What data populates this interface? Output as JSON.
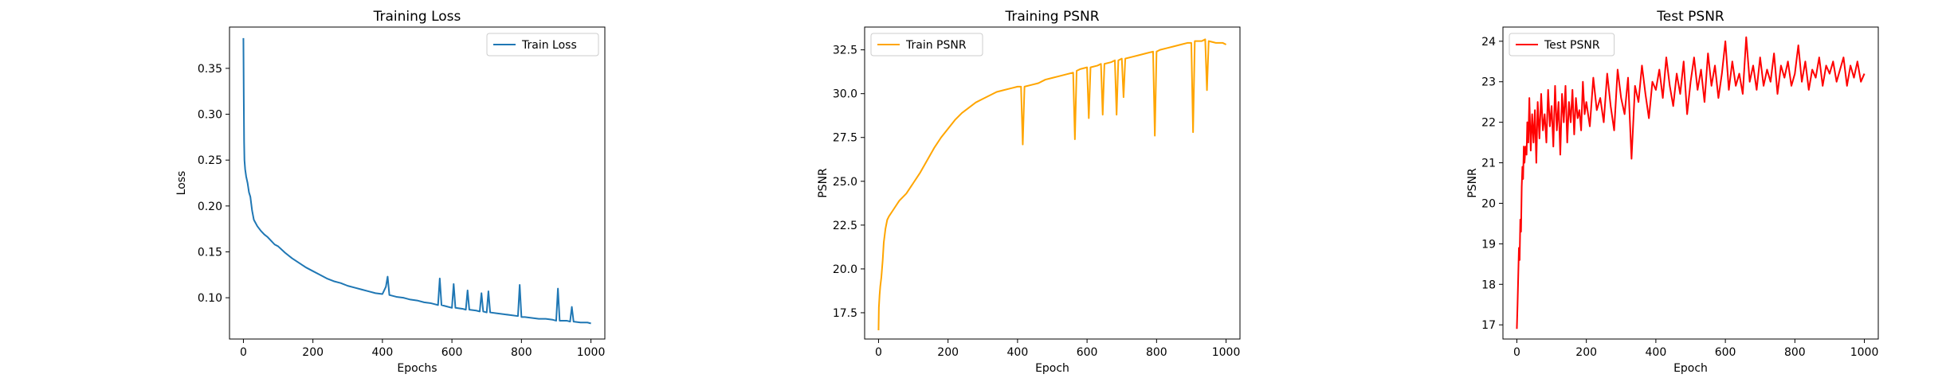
{
  "chart_data": [
    {
      "type": "line",
      "title": "Training Loss",
      "xlabel": "Epochs",
      "ylabel": "Loss",
      "xlim": [
        -40,
        1040
      ],
      "ylim": [
        0.055,
        0.395
      ],
      "xticks": [
        0,
        200,
        400,
        600,
        800,
        1000
      ],
      "xtick_labels": [
        "0",
        "200",
        "400",
        "600",
        "800",
        "1000"
      ],
      "yticks": [
        0.1,
        0.15,
        0.2,
        0.25,
        0.3,
        0.35
      ],
      "ytick_labels": [
        "0.10",
        "0.15",
        "0.20",
        "0.25",
        "0.30",
        "0.35"
      ],
      "grid": false,
      "legend_position": "top-right",
      "series": [
        {
          "name": "Train Loss",
          "color": "#1f77b4",
          "x": [
            0,
            1,
            2,
            3,
            5,
            8,
            12,
            16,
            20,
            25,
            30,
            40,
            50,
            60,
            70,
            80,
            90,
            100,
            120,
            140,
            160,
            180,
            200,
            220,
            240,
            260,
            280,
            300,
            320,
            340,
            360,
            380,
            400,
            410,
            415,
            420,
            440,
            460,
            480,
            500,
            520,
            540,
            560,
            565,
            570,
            580,
            600,
            605,
            610,
            630,
            640,
            645,
            650,
            670,
            680,
            685,
            690,
            700,
            705,
            710,
            730,
            750,
            770,
            790,
            795,
            800,
            810,
            830,
            850,
            870,
            890,
            900,
            905,
            910,
            930,
            940,
            945,
            950,
            970,
            990,
            1000
          ],
          "y": [
            0.383,
            0.32,
            0.27,
            0.25,
            0.24,
            0.232,
            0.225,
            0.215,
            0.21,
            0.195,
            0.185,
            0.178,
            0.173,
            0.169,
            0.166,
            0.162,
            0.158,
            0.156,
            0.149,
            0.143,
            0.138,
            0.133,
            0.129,
            0.125,
            0.121,
            0.118,
            0.116,
            0.113,
            0.111,
            0.109,
            0.107,
            0.105,
            0.104,
            0.112,
            0.123,
            0.103,
            0.101,
            0.1,
            0.098,
            0.097,
            0.095,
            0.094,
            0.092,
            0.121,
            0.092,
            0.091,
            0.089,
            0.115,
            0.089,
            0.088,
            0.087,
            0.108,
            0.087,
            0.086,
            0.085,
            0.105,
            0.085,
            0.084,
            0.107,
            0.084,
            0.083,
            0.082,
            0.081,
            0.08,
            0.114,
            0.079,
            0.079,
            0.078,
            0.077,
            0.077,
            0.076,
            0.075,
            0.11,
            0.075,
            0.075,
            0.074,
            0.09,
            0.074,
            0.073,
            0.073,
            0.072
          ]
        }
      ]
    },
    {
      "type": "line",
      "title": "Training PSNR",
      "xlabel": "Epoch",
      "ylabel": "PSNR",
      "xlim": [
        -40,
        1040
      ],
      "ylim": [
        16.0,
        33.8
      ],
      "xticks": [
        0,
        200,
        400,
        600,
        800,
        1000
      ],
      "xtick_labels": [
        "0",
        "200",
        "400",
        "600",
        "800",
        "1000"
      ],
      "yticks": [
        17.5,
        20.0,
        22.5,
        25.0,
        27.5,
        30.0,
        32.5
      ],
      "ytick_labels": [
        "17.5",
        "20.0",
        "22.5",
        "25.0",
        "27.5",
        "30.0",
        "32.5"
      ],
      "grid": false,
      "legend_position": "top-left",
      "series": [
        {
          "name": "Train PSNR",
          "color": "#ffa500",
          "x": [
            0,
            1,
            3,
            5,
            8,
            12,
            15,
            20,
            25,
            30,
            40,
            50,
            60,
            80,
            100,
            120,
            140,
            160,
            180,
            200,
            220,
            240,
            260,
            280,
            300,
            320,
            340,
            360,
            380,
            400,
            410,
            415,
            420,
            440,
            460,
            480,
            500,
            520,
            540,
            560,
            565,
            570,
            580,
            600,
            605,
            610,
            630,
            640,
            645,
            650,
            670,
            680,
            685,
            690,
            700,
            705,
            710,
            730,
            750,
            770,
            790,
            795,
            800,
            810,
            830,
            850,
            870,
            890,
            900,
            905,
            910,
            930,
            940,
            945,
            950,
            970,
            990,
            1000
          ],
          "y": [
            16.5,
            17.8,
            18.5,
            19.0,
            19.5,
            20.5,
            21.5,
            22.3,
            22.8,
            23.0,
            23.3,
            23.6,
            23.9,
            24.3,
            24.9,
            25.5,
            26.2,
            26.9,
            27.5,
            28.0,
            28.5,
            28.9,
            29.2,
            29.5,
            29.7,
            29.9,
            30.1,
            30.2,
            30.3,
            30.4,
            30.4,
            27.1,
            30.4,
            30.5,
            30.6,
            30.8,
            30.9,
            31.0,
            31.1,
            31.2,
            27.4,
            31.3,
            31.4,
            31.5,
            28.6,
            31.5,
            31.6,
            31.7,
            28.8,
            31.7,
            31.8,
            31.9,
            28.8,
            31.9,
            32.0,
            29.8,
            32.0,
            32.1,
            32.2,
            32.3,
            32.4,
            27.6,
            32.4,
            32.5,
            32.6,
            32.7,
            32.8,
            32.9,
            32.9,
            27.8,
            33.0,
            33.0,
            33.1,
            30.2,
            33.0,
            32.9,
            32.9,
            32.8
          ]
        }
      ]
    },
    {
      "type": "line",
      "title": "Test PSNR",
      "xlabel": "Epoch",
      "ylabel": "PSNR",
      "xlim": [
        -40,
        1040
      ],
      "ylim": [
        16.65,
        24.35
      ],
      "xticks": [
        0,
        200,
        400,
        600,
        800,
        1000
      ],
      "xtick_labels": [
        "0",
        "200",
        "400",
        "600",
        "800",
        "1000"
      ],
      "yticks": [
        17,
        18,
        19,
        20,
        21,
        22,
        23,
        24
      ],
      "ytick_labels": [
        "17",
        "18",
        "19",
        "20",
        "21",
        "22",
        "23",
        "24"
      ],
      "grid": false,
      "legend_position": "top-left",
      "series": [
        {
          "name": "Test PSNR",
          "color": "#ff0000",
          "x": [
            0,
            2,
            4,
            6,
            8,
            10,
            12,
            14,
            16,
            18,
            20,
            22,
            25,
            28,
            30,
            33,
            36,
            40,
            44,
            48,
            52,
            56,
            60,
            65,
            70,
            75,
            80,
            85,
            90,
            95,
            100,
            105,
            110,
            115,
            120,
            125,
            130,
            135,
            140,
            145,
            150,
            155,
            160,
            165,
            170,
            175,
            180,
            185,
            190,
            195,
            200,
            210,
            220,
            230,
            240,
            250,
            260,
            270,
            280,
            290,
            300,
            310,
            320,
            330,
            340,
            350,
            360,
            370,
            380,
            390,
            400,
            410,
            420,
            430,
            440,
            450,
            460,
            470,
            480,
            490,
            500,
            510,
            520,
            530,
            540,
            550,
            560,
            570,
            580,
            590,
            600,
            610,
            620,
            630,
            640,
            650,
            660,
            670,
            680,
            690,
            700,
            710,
            720,
            730,
            740,
            750,
            760,
            770,
            780,
            790,
            800,
            810,
            820,
            830,
            840,
            850,
            860,
            870,
            880,
            890,
            900,
            910,
            920,
            930,
            940,
            950,
            960,
            970,
            980,
            990,
            1000
          ],
          "y": [
            16.9,
            17.5,
            18.2,
            18.9,
            18.6,
            19.6,
            19.3,
            20.4,
            20.9,
            20.6,
            21.4,
            21.0,
            21.4,
            21.2,
            22.0,
            21.5,
            22.6,
            21.3,
            22.2,
            21.5,
            22.3,
            21.0,
            22.5,
            21.6,
            22.7,
            21.8,
            22.2,
            21.5,
            22.8,
            21.9,
            22.4,
            21.4,
            22.9,
            21.8,
            22.5,
            21.2,
            22.7,
            22.0,
            22.9,
            21.5,
            22.5,
            22.0,
            22.8,
            21.7,
            22.6,
            22.1,
            22.3,
            21.8,
            23.0,
            22.2,
            22.5,
            21.9,
            23.1,
            22.3,
            22.6,
            22.0,
            23.2,
            22.4,
            21.8,
            23.3,
            22.6,
            22.2,
            23.1,
            21.1,
            22.9,
            22.5,
            23.4,
            22.7,
            22.1,
            23.0,
            22.8,
            23.3,
            22.6,
            23.6,
            22.9,
            22.4,
            23.2,
            22.7,
            23.5,
            22.2,
            23.0,
            23.6,
            22.8,
            23.3,
            22.5,
            23.7,
            22.9,
            23.4,
            22.6,
            23.2,
            24.0,
            22.8,
            23.5,
            22.9,
            23.2,
            22.7,
            24.1,
            23.0,
            23.4,
            22.8,
            23.6,
            22.9,
            23.3,
            23.0,
            23.7,
            22.7,
            23.4,
            23.1,
            23.5,
            22.9,
            23.2,
            23.9,
            23.0,
            23.5,
            22.8,
            23.3,
            23.1,
            23.6,
            22.9,
            23.4,
            23.2,
            23.5,
            23.0,
            23.3,
            23.6,
            22.9,
            23.4,
            23.1,
            23.5,
            23.0,
            23.2
          ]
        }
      ]
    }
  ]
}
